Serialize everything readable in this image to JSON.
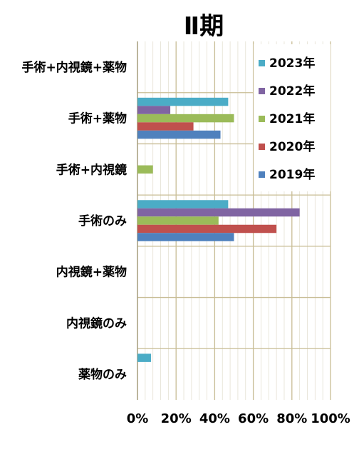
{
  "chart_data": {
    "type": "bar",
    "orientation": "horizontal",
    "title": "Ⅱ期",
    "xlabel": "",
    "ylabel": "",
    "xlim": [
      0,
      100
    ],
    "x_ticks": [
      "0%",
      "20%",
      "40%",
      "60%",
      "80%",
      "100%"
    ],
    "grid": "vertical, minor every 4%, major every 20%",
    "legend_position": "top-right, inside plot",
    "categories": [
      "手術+内視鏡+薬物",
      "手術+薬物",
      "手術+内視鏡",
      "手術のみ",
      "内視鏡+薬物",
      "内視鏡のみ",
      "薬物のみ"
    ],
    "series": [
      {
        "name": "2023年",
        "color": "#4bacc6",
        "values": [
          0,
          47,
          0,
          47,
          0,
          0,
          7
        ]
      },
      {
        "name": "2022年",
        "color": "#8064a2",
        "values": [
          0,
          17,
          0,
          84,
          0,
          0,
          0
        ]
      },
      {
        "name": "2021年",
        "color": "#9bbb59",
        "values": [
          0,
          50,
          8,
          42,
          0,
          0,
          0
        ]
      },
      {
        "name": "2020年",
        "color": "#c0504d",
        "values": [
          0,
          29,
          0,
          72,
          0,
          0,
          0
        ]
      },
      {
        "name": "2019年",
        "color": "#4f81bd",
        "values": [
          0,
          43,
          0,
          50,
          0,
          0,
          0
        ]
      }
    ]
  }
}
